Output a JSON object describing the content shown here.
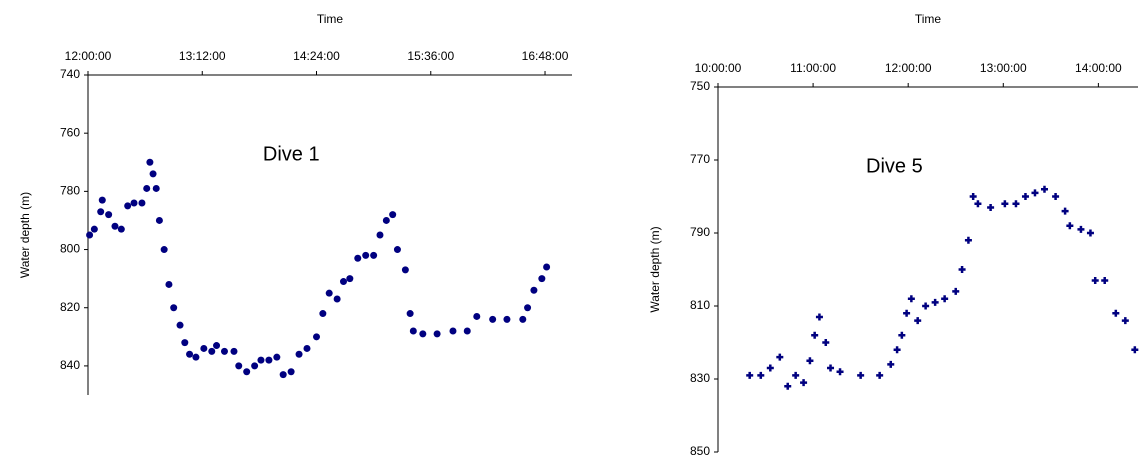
{
  "chart_data": [
    {
      "type": "scatter",
      "annotation": "Dive 1",
      "x_label": "Time",
      "y_label": "Water depth (m)",
      "color": "#000080",
      "marker": "circle",
      "y_inverted": true,
      "xlim": [
        "12:00:00",
        "17:05:00"
      ],
      "xticks": [
        "12:00:00",
        "13:12:00",
        "14:24:00",
        "15:36:00",
        "16:48:00"
      ],
      "ylim": [
        740,
        850
      ],
      "yticks": [
        740,
        760,
        780,
        800,
        820,
        840
      ],
      "x": [
        "12:01:00",
        "12:04:00",
        "12:08:00",
        "12:09:00",
        "12:13:00",
        "12:17:00",
        "12:21:00",
        "12:25:00",
        "12:29:00",
        "12:34:00",
        "12:37:00",
        "12:39:00",
        "12:41:00",
        "12:43:00",
        "12:45:00",
        "12:48:00",
        "12:51:00",
        "12:54:00",
        "12:58:00",
        "13:01:00",
        "13:04:00",
        "13:08:00",
        "13:13:00",
        "13:18:00",
        "13:21:00",
        "13:26:00",
        "13:32:00",
        "13:35:00",
        "13:40:00",
        "13:45:00",
        "13:49:00",
        "13:54:00",
        "13:59:00",
        "14:03:00",
        "14:08:00",
        "14:13:00",
        "14:18:00",
        "14:24:00",
        "14:28:00",
        "14:32:00",
        "14:37:00",
        "14:41:00",
        "14:45:00",
        "14:50:00",
        "14:55:00",
        "15:00:00",
        "15:04:00",
        "15:08:00",
        "15:12:00",
        "15:15:00",
        "15:20:00",
        "15:23:00",
        "15:25:00",
        "15:31:00",
        "15:40:00",
        "15:50:00",
        "15:59:00",
        "16:05:00",
        "16:15:00",
        "16:24:00",
        "16:34:00",
        "16:37:00",
        "16:41:00",
        "16:46:00",
        "16:49:00"
      ],
      "values": [
        795,
        793,
        787,
        783,
        788,
        792,
        793,
        785,
        784,
        784,
        779,
        770,
        774,
        779,
        790,
        800,
        812,
        820,
        826,
        832,
        836,
        837,
        834,
        835,
        833,
        835,
        835,
        840,
        842,
        840,
        838,
        838,
        837,
        843,
        842,
        836,
        834,
        830,
        822,
        815,
        817,
        811,
        810,
        803,
        802,
        802,
        795,
        790,
        788,
        800,
        807,
        822,
        828,
        829,
        829,
        828,
        828,
        823,
        824,
        824,
        824,
        820,
        814,
        810,
        806
      ]
    },
    {
      "type": "scatter",
      "annotation": "Dive 5",
      "x_label": "Time",
      "y_label": "Water depth (m)",
      "color": "#000080",
      "marker": "plus",
      "y_inverted": true,
      "xlim": [
        "10:00:00",
        "14:25:00"
      ],
      "xticks": [
        "10:00:00",
        "11:00:00",
        "12:00:00",
        "13:00:00",
        "14:00:00"
      ],
      "ylim": [
        750,
        850
      ],
      "yticks": [
        750,
        770,
        790,
        810,
        830,
        850
      ],
      "x": [
        "10:20:00",
        "10:27:00",
        "10:33:00",
        "10:39:00",
        "10:44:00",
        "10:49:00",
        "10:54:00",
        "10:58:00",
        "11:01:00",
        "11:04:00",
        "11:08:00",
        "11:11:00",
        "11:17:00",
        "11:30:00",
        "11:42:00",
        "11:49:00",
        "11:53:00",
        "11:56:00",
        "11:59:00",
        "12:02:00",
        "12:06:00",
        "12:11:00",
        "12:17:00",
        "12:23:00",
        "12:30:00",
        "12:34:00",
        "12:38:00",
        "12:41:00",
        "12:44:00",
        "12:52:00",
        "13:01:00",
        "13:08:00",
        "13:14:00",
        "13:20:00",
        "13:26:00",
        "13:33:00",
        "13:39:00",
        "13:42:00",
        "13:49:00",
        "13:55:00",
        "13:58:00",
        "14:04:00",
        "14:11:00",
        "14:17:00",
        "14:23:00"
      ],
      "values": [
        829,
        829,
        827,
        824,
        832,
        829,
        831,
        825,
        818,
        813,
        820,
        827,
        828,
        829,
        829,
        826,
        822,
        818,
        812,
        808,
        814,
        810,
        809,
        808,
        806,
        800,
        792,
        780,
        782,
        783,
        782,
        782,
        780,
        779,
        778,
        780,
        784,
        788,
        789,
        790,
        803,
        803,
        812,
        814,
        822
      ]
    }
  ]
}
